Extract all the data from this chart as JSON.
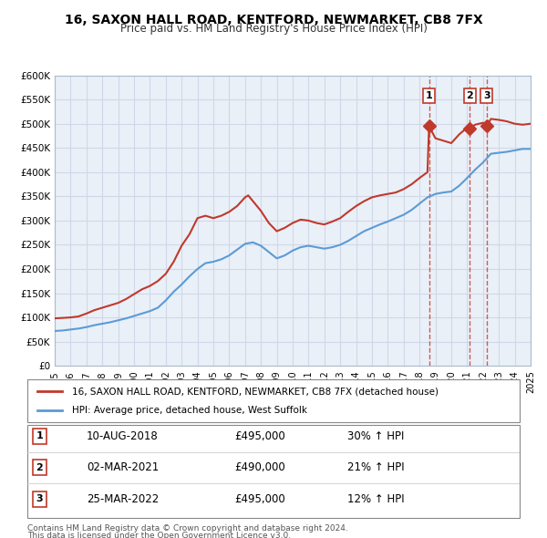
{
  "title": "16, SAXON HALL ROAD, KENTFORD, NEWMARKET, CB8 7FX",
  "subtitle": "Price paid vs. HM Land Registry's House Price Index (HPI)",
  "x_start_year": 1995,
  "x_end_year": 2025,
  "y_min": 0,
  "y_max": 600000,
  "y_ticks": [
    0,
    50000,
    100000,
    150000,
    200000,
    250000,
    300000,
    350000,
    400000,
    450000,
    500000,
    550000,
    600000
  ],
  "red_line_color": "#c0392b",
  "blue_line_color": "#5b9bd5",
  "grid_color": "#d0d8e8",
  "plot_bg_color": "#eaf0f8",
  "legend_label_red": "16, SAXON HALL ROAD, KENTFORD, NEWMARKET, CB8 7FX (detached house)",
  "legend_label_blue": "HPI: Average price, detached house, West Suffolk",
  "sale_points": [
    {
      "num": 1,
      "year": 2018.6,
      "price": 495000,
      "date": "10-AUG-2018",
      "pct": "30%"
    },
    {
      "num": 2,
      "year": 2021.17,
      "price": 490000,
      "date": "02-MAR-2021",
      "pct": "21%"
    },
    {
      "num": 3,
      "year": 2022.23,
      "price": 495000,
      "date": "25-MAR-2022",
      "pct": "12%"
    }
  ],
  "footer_line1": "Contains HM Land Registry data © Crown copyright and database right 2024.",
  "footer_line2": "This data is licensed under the Open Government Licence v3.0.",
  "red_hpi_data": [
    [
      1995.0,
      98000
    ],
    [
      1995.5,
      99000
    ],
    [
      1996.0,
      100000
    ],
    [
      1996.5,
      102000
    ],
    [
      1997.0,
      108000
    ],
    [
      1997.5,
      115000
    ],
    [
      1998.0,
      120000
    ],
    [
      1998.5,
      125000
    ],
    [
      1999.0,
      130000
    ],
    [
      1999.5,
      138000
    ],
    [
      2000.0,
      148000
    ],
    [
      2000.5,
      158000
    ],
    [
      2001.0,
      165000
    ],
    [
      2001.5,
      175000
    ],
    [
      2002.0,
      190000
    ],
    [
      2002.5,
      215000
    ],
    [
      2003.0,
      248000
    ],
    [
      2003.5,
      272000
    ],
    [
      2004.0,
      305000
    ],
    [
      2004.5,
      310000
    ],
    [
      2005.0,
      305000
    ],
    [
      2005.5,
      310000
    ],
    [
      2006.0,
      318000
    ],
    [
      2006.5,
      330000
    ],
    [
      2007.0,
      348000
    ],
    [
      2007.2,
      352000
    ],
    [
      2007.5,
      340000
    ],
    [
      2008.0,
      320000
    ],
    [
      2008.5,
      295000
    ],
    [
      2009.0,
      278000
    ],
    [
      2009.5,
      285000
    ],
    [
      2010.0,
      295000
    ],
    [
      2010.5,
      302000
    ],
    [
      2011.0,
      300000
    ],
    [
      2011.5,
      295000
    ],
    [
      2012.0,
      292000
    ],
    [
      2012.5,
      298000
    ],
    [
      2013.0,
      305000
    ],
    [
      2013.5,
      318000
    ],
    [
      2014.0,
      330000
    ],
    [
      2014.5,
      340000
    ],
    [
      2015.0,
      348000
    ],
    [
      2015.5,
      352000
    ],
    [
      2016.0,
      355000
    ],
    [
      2016.5,
      358000
    ],
    [
      2017.0,
      365000
    ],
    [
      2017.5,
      375000
    ],
    [
      2018.0,
      388000
    ],
    [
      2018.5,
      400000
    ],
    [
      2018.6,
      495000
    ],
    [
      2019.0,
      470000
    ],
    [
      2019.5,
      465000
    ],
    [
      2020.0,
      460000
    ],
    [
      2020.5,
      478000
    ],
    [
      2021.0,
      492000
    ],
    [
      2021.17,
      490000
    ],
    [
      2021.5,
      498000
    ],
    [
      2022.0,
      502000
    ],
    [
      2022.23,
      495000
    ],
    [
      2022.5,
      510000
    ],
    [
      2023.0,
      508000
    ],
    [
      2023.5,
      505000
    ],
    [
      2024.0,
      500000
    ],
    [
      2024.5,
      498000
    ],
    [
      2025.0,
      500000
    ]
  ],
  "blue_hpi_data": [
    [
      1995.0,
      72000
    ],
    [
      1995.5,
      73000
    ],
    [
      1996.0,
      75000
    ],
    [
      1996.5,
      77000
    ],
    [
      1997.0,
      80000
    ],
    [
      1997.5,
      84000
    ],
    [
      1998.0,
      87000
    ],
    [
      1998.5,
      90000
    ],
    [
      1999.0,
      94000
    ],
    [
      1999.5,
      98000
    ],
    [
      2000.0,
      103000
    ],
    [
      2000.5,
      108000
    ],
    [
      2001.0,
      113000
    ],
    [
      2001.5,
      120000
    ],
    [
      2002.0,
      135000
    ],
    [
      2002.5,
      153000
    ],
    [
      2003.0,
      168000
    ],
    [
      2003.5,
      185000
    ],
    [
      2004.0,
      200000
    ],
    [
      2004.5,
      212000
    ],
    [
      2005.0,
      215000
    ],
    [
      2005.5,
      220000
    ],
    [
      2006.0,
      228000
    ],
    [
      2006.5,
      240000
    ],
    [
      2007.0,
      252000
    ],
    [
      2007.5,
      255000
    ],
    [
      2008.0,
      248000
    ],
    [
      2008.5,
      235000
    ],
    [
      2009.0,
      222000
    ],
    [
      2009.5,
      228000
    ],
    [
      2010.0,
      238000
    ],
    [
      2010.5,
      245000
    ],
    [
      2011.0,
      248000
    ],
    [
      2011.5,
      245000
    ],
    [
      2012.0,
      242000
    ],
    [
      2012.5,
      245000
    ],
    [
      2013.0,
      250000
    ],
    [
      2013.5,
      258000
    ],
    [
      2014.0,
      268000
    ],
    [
      2014.5,
      278000
    ],
    [
      2015.0,
      285000
    ],
    [
      2015.5,
      292000
    ],
    [
      2016.0,
      298000
    ],
    [
      2016.5,
      305000
    ],
    [
      2017.0,
      312000
    ],
    [
      2017.5,
      322000
    ],
    [
      2018.0,
      335000
    ],
    [
      2018.5,
      348000
    ],
    [
      2019.0,
      355000
    ],
    [
      2019.5,
      358000
    ],
    [
      2020.0,
      360000
    ],
    [
      2020.5,
      372000
    ],
    [
      2021.0,
      388000
    ],
    [
      2021.5,
      405000
    ],
    [
      2022.0,
      420000
    ],
    [
      2022.5,
      438000
    ],
    [
      2023.0,
      440000
    ],
    [
      2023.5,
      442000
    ],
    [
      2024.0,
      445000
    ],
    [
      2024.5,
      448000
    ],
    [
      2025.0,
      448000
    ]
  ]
}
